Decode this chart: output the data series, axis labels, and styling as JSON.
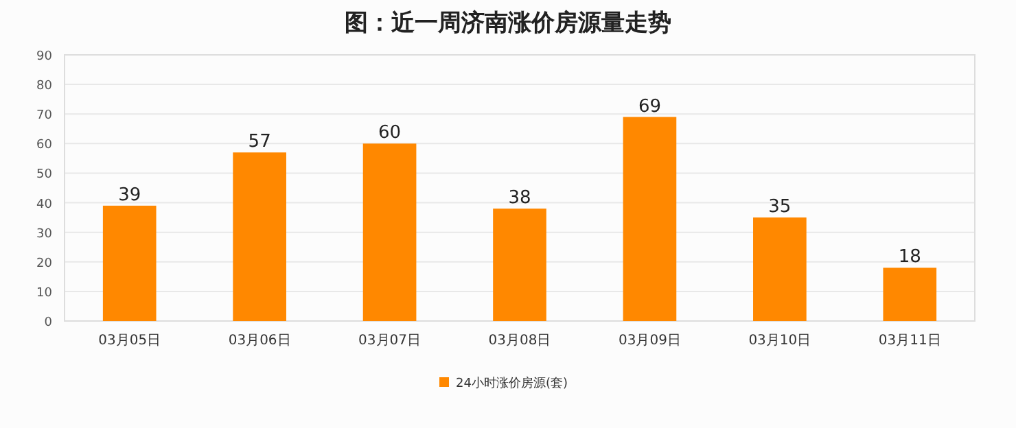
{
  "chart_data": {
    "type": "bar",
    "title": "图：近一周济南涨价房源量走势",
    "categories": [
      "03月05日",
      "03月06日",
      "03月07日",
      "03月08日",
      "03月09日",
      "03月10日",
      "03月11日"
    ],
    "series": [
      {
        "name": "24小时涨价房源(套)",
        "color": "#ff8800",
        "values": [
          39,
          57,
          60,
          38,
          69,
          35,
          18
        ]
      }
    ],
    "ylim": [
      0,
      90
    ],
    "yticks": [
      0,
      10,
      20,
      30,
      40,
      50,
      60,
      70,
      80,
      90
    ],
    "grid": "y",
    "legend": "bottom",
    "data_labels": true
  }
}
